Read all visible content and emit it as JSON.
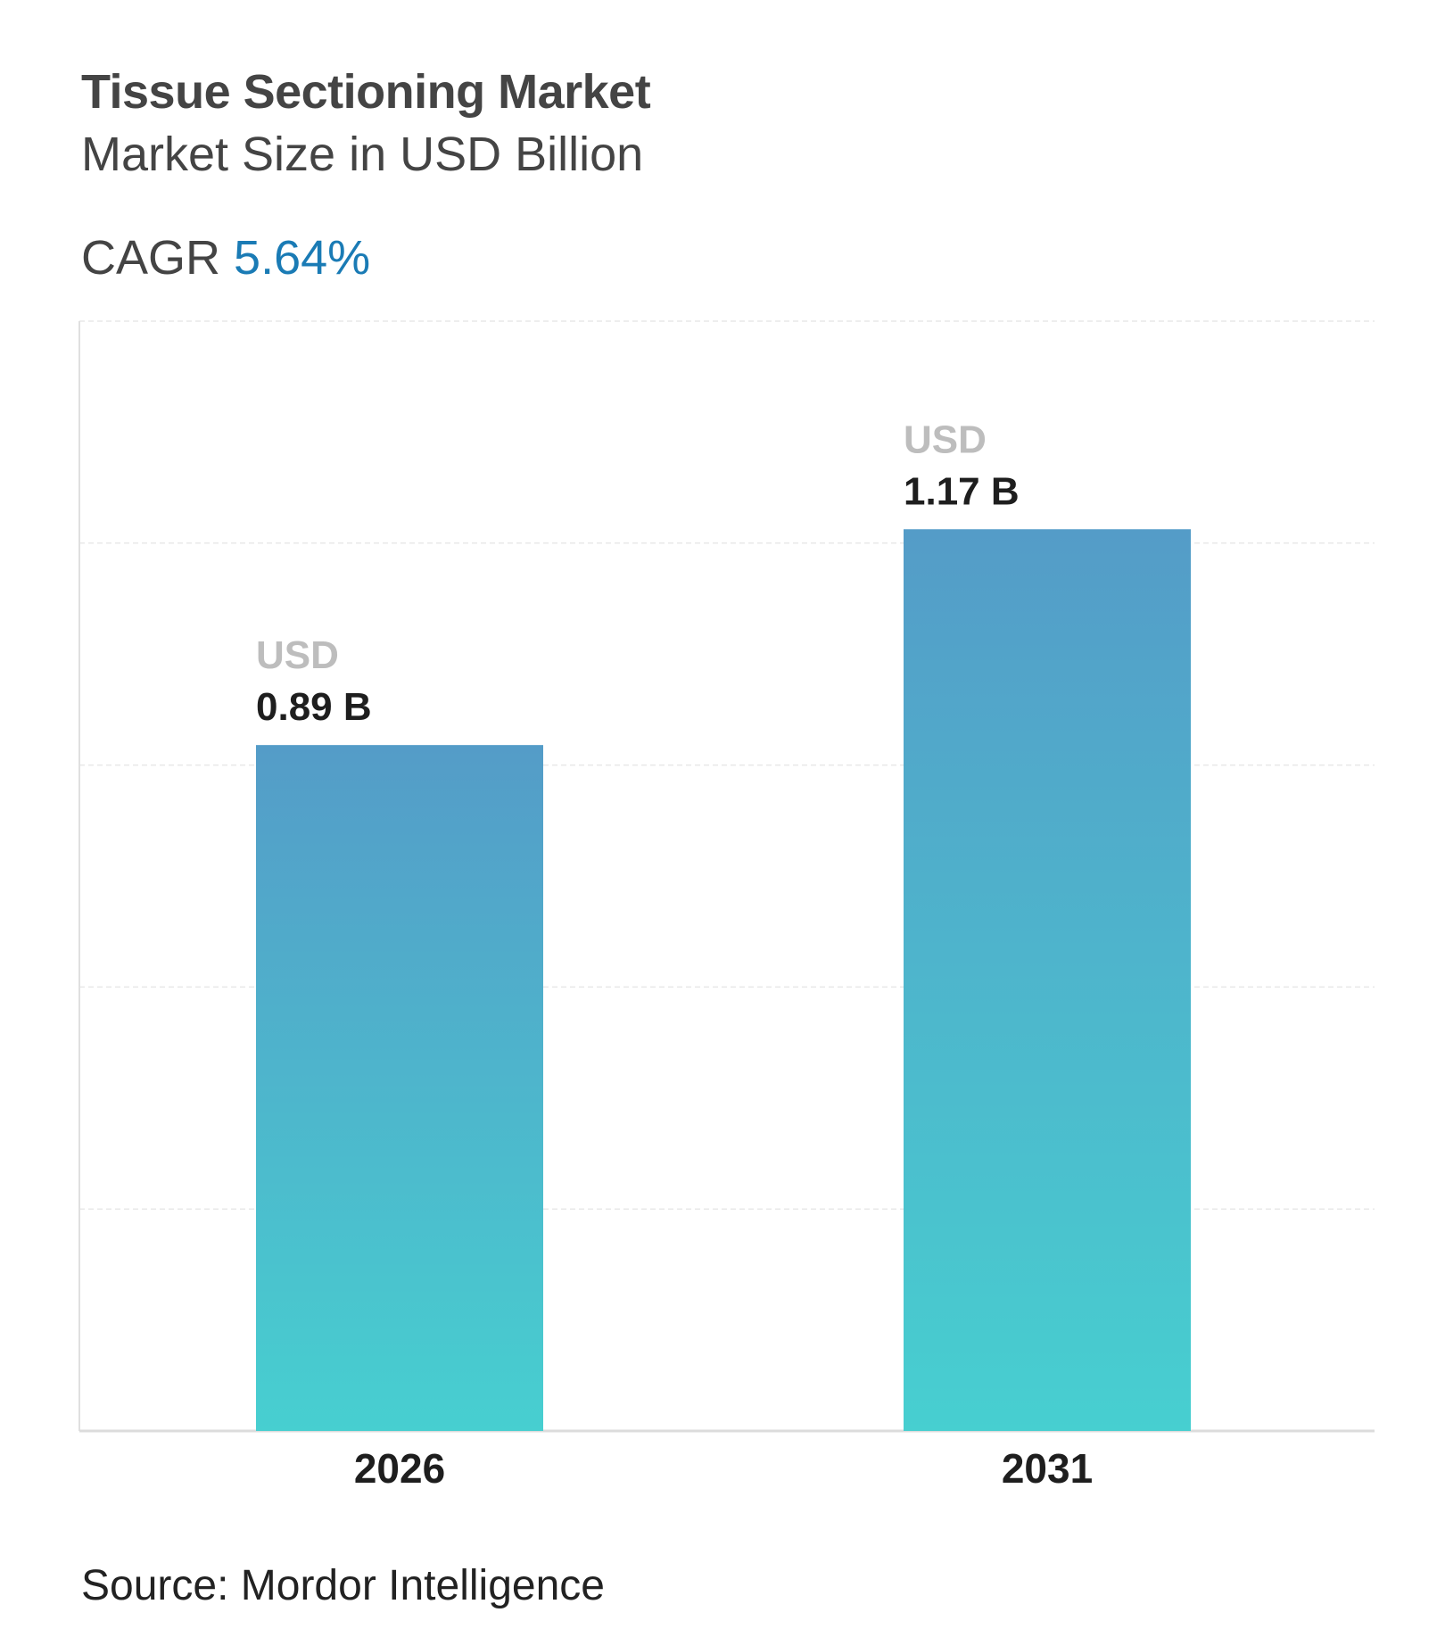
{
  "chart_data": {
    "type": "bar",
    "title": "Tissue Sectioning Market",
    "subtitle": "Market Size in USD Billion",
    "cagr_label": "CAGR",
    "cagr_value": "5.64%",
    "categories": [
      "2026",
      "2031"
    ],
    "values": [
      0.89,
      1.17
    ],
    "value_prefix": "USD",
    "data_labels": [
      "0.89 B",
      "1.17 B"
    ],
    "ylim": [
      0,
      1.44
    ],
    "grid": true,
    "colors": {
      "bar_top": "#549cc8",
      "bar_bottom": "#47cfd0",
      "cagr": "#1a7bb5",
      "title": "#444444"
    },
    "source": "Source: Mordor Intelligence"
  }
}
